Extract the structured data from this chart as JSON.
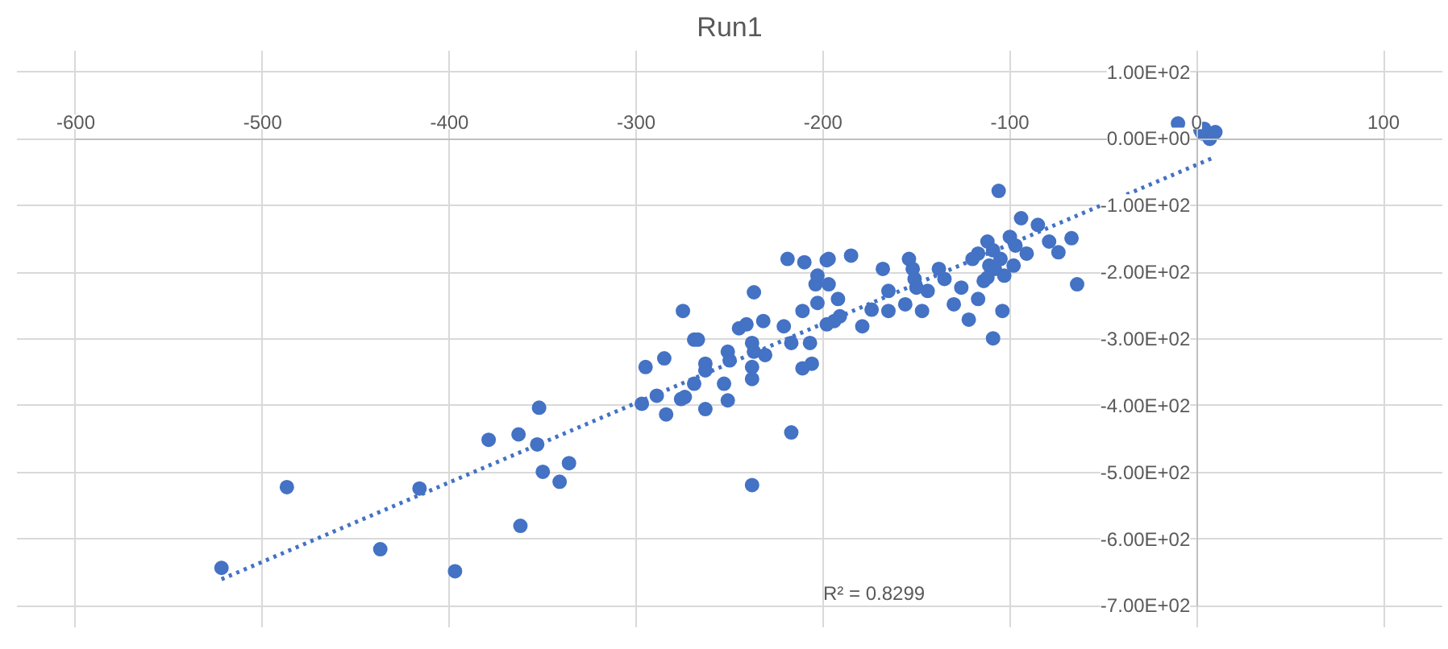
{
  "chart_data": {
    "type": "scatter",
    "title": "Run1",
    "xlim": [
      -600,
      100
    ],
    "xticks": [
      -600,
      -500,
      -400,
      -300,
      -200,
      -100,
      0,
      100
    ],
    "ylim": [
      -700,
      100
    ],
    "yticks": [
      {
        "value": 100,
        "label": "1.00E+02"
      },
      {
        "value": 0,
        "label": "0.00E+00"
      },
      {
        "value": -100,
        "label": "-1.00E+02"
      },
      {
        "value": -200,
        "label": "-2.00E+02"
      },
      {
        "value": -300,
        "label": "-3.00E+02"
      },
      {
        "value": -400,
        "label": "-4.00E+02"
      },
      {
        "value": -500,
        "label": "-5.00E+02"
      },
      {
        "value": -600,
        "label": "-6.00E+02"
      },
      {
        "value": -700,
        "label": "-7.00E+02"
      }
    ],
    "grid": true,
    "annotations": [
      "R² = 0.8299"
    ],
    "series": [
      {
        "type": "scatter",
        "color": "#4472c4",
        "marker": "circle",
        "x": [
          -522,
          -487,
          -437,
          -416,
          -397,
          -362,
          -379,
          -363,
          -352,
          -353,
          -350,
          -341,
          -336,
          -297,
          -295,
          -289,
          -285,
          -284,
          -276,
          -274,
          -275,
          -269,
          -267,
          -269,
          -263,
          -263,
          -263,
          -253,
          -251,
          -251,
          -250,
          -245,
          -241,
          -237,
          -238,
          -237,
          -238,
          -238,
          -232,
          -231,
          -238,
          -217,
          -219,
          -210,
          -211,
          -221,
          -217,
          -207,
          -211,
          -206,
          -203,
          -204,
          -203,
          -198,
          -197,
          -197,
          -192,
          -194,
          -198,
          -191,
          -185,
          -179,
          -174,
          -168,
          -165,
          -165,
          -156,
          -154,
          -152,
          -151,
          -150,
          -147,
          -144,
          -138,
          -135,
          -130,
          -126,
          -122,
          -117,
          -117,
          -114,
          -111,
          -109,
          -112,
          -109,
          -105,
          -104,
          -106,
          -100,
          -98,
          -97,
          -94,
          -91,
          -85,
          -79,
          -74,
          -67,
          -64,
          -120,
          -108,
          -103,
          -112,
          -10,
          2,
          3,
          7,
          10,
          4
        ],
        "values": [
          -643,
          -522,
          -615,
          -524,
          -648,
          -580,
          -451,
          -443,
          -403,
          -458,
          -499,
          -514,
          -486,
          -397,
          -342,
          -385,
          -329,
          -413,
          -390,
          -387,
          -258,
          -301,
          -301,
          -367,
          -337,
          -347,
          -405,
          -367,
          -319,
          -392,
          -332,
          -284,
          -278,
          -230,
          -306,
          -319,
          -342,
          -360,
          -273,
          -324,
          -519,
          -440,
          -180,
          -185,
          -258,
          -281,
          -306,
          -306,
          -344,
          -337,
          -246,
          -218,
          -205,
          -182,
          -180,
          -218,
          -240,
          -273,
          -278,
          -266,
          -175,
          -281,
          -256,
          -195,
          -228,
          -258,
          -248,
          -180,
          -195,
          -210,
          -223,
          -258,
          -228,
          -195,
          -210,
          -248,
          -223,
          -271,
          -240,
          -172,
          -213,
          -190,
          -299,
          -154,
          -167,
          -180,
          -258,
          -78,
          -147,
          -190,
          -160,
          -119,
          -172,
          -129,
          -154,
          -170,
          -149,
          -218,
          -180,
          -195,
          -205,
          -208,
          23,
          13,
          8,
          0,
          10,
          15
        ]
      },
      {
        "type": "line",
        "color": "#4472c4",
        "line_style": "dotted",
        "marker": "none",
        "x": [
          -522,
          10
        ],
        "values": [
          -660,
          -27
        ]
      }
    ]
  }
}
